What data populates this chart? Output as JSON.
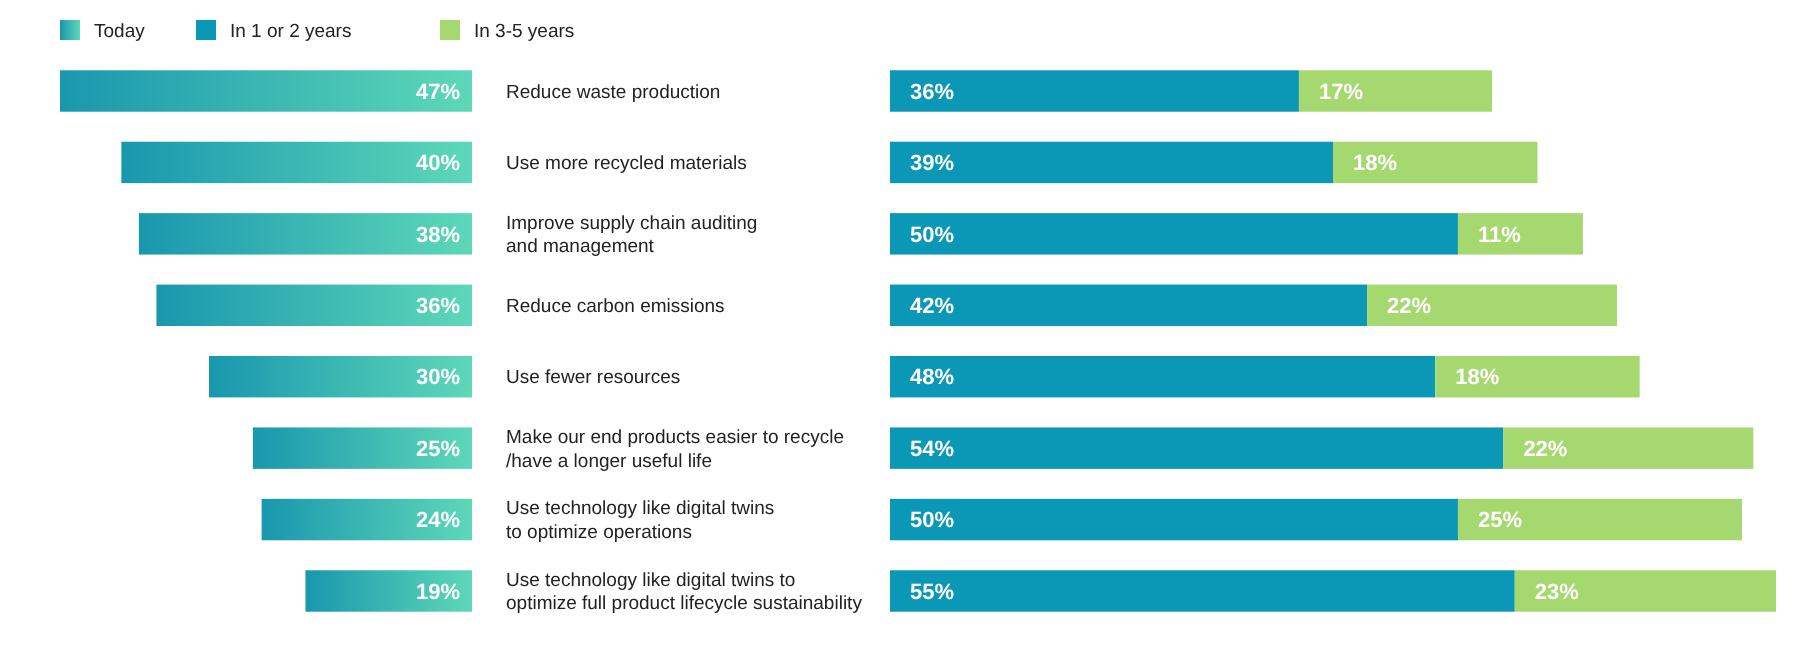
{
  "chart_data": [
    {
      "type": "bar",
      "orientation": "horizontal",
      "categories": [
        "Reduce waste production",
        "Use more recycled materials",
        "Improve supply chain auditing\nand management",
        "Reduce carbon emissions",
        "Use fewer resources",
        "Make our end products easier to recycle\n/have a longer useful life",
        "Use technology like digital twins\nto optimize operations",
        "Use technology like digital twins to\noptimize full product lifecycle sustainability"
      ],
      "tick_labels": "y",
      "legend": "top left",
      "series": [
        {
          "name": "Today",
          "color": "#4fb59a",
          "values": [
            47,
            40,
            38,
            36,
            30,
            25,
            24,
            19
          ],
          "value_labels": [
            "47%",
            "40%",
            "38%",
            "36%",
            "30%",
            "25%",
            "24%",
            "19%"
          ]
        }
      ]
    },
    {
      "type": "bar",
      "orientation": "horizontal",
      "stacked": true,
      "categories": [
        null,
        null,
        null,
        null,
        null,
        null,
        null,
        null
      ],
      "tick_labels": false,
      "legend": "top left",
      "series": [
        {
          "name": "In 1 or 2 years",
          "color": "#0b97b6",
          "values": [
            36,
            39,
            50,
            42,
            48,
            54,
            50,
            55
          ],
          "value_labels": [
            "36%",
            "39%",
            "50%",
            "42%",
            "48%",
            "54%",
            "50%",
            "55%"
          ]
        },
        {
          "name": "In 3-5 years",
          "color": "#a6d870",
          "values": [
            17,
            18,
            11,
            22,
            18,
            22,
            25,
            23
          ],
          "value_labels": [
            "17%",
            "18%",
            "11%",
            "22%",
            "18%",
            "22%",
            "25%",
            "23%"
          ]
        }
      ]
    }
  ]
}
